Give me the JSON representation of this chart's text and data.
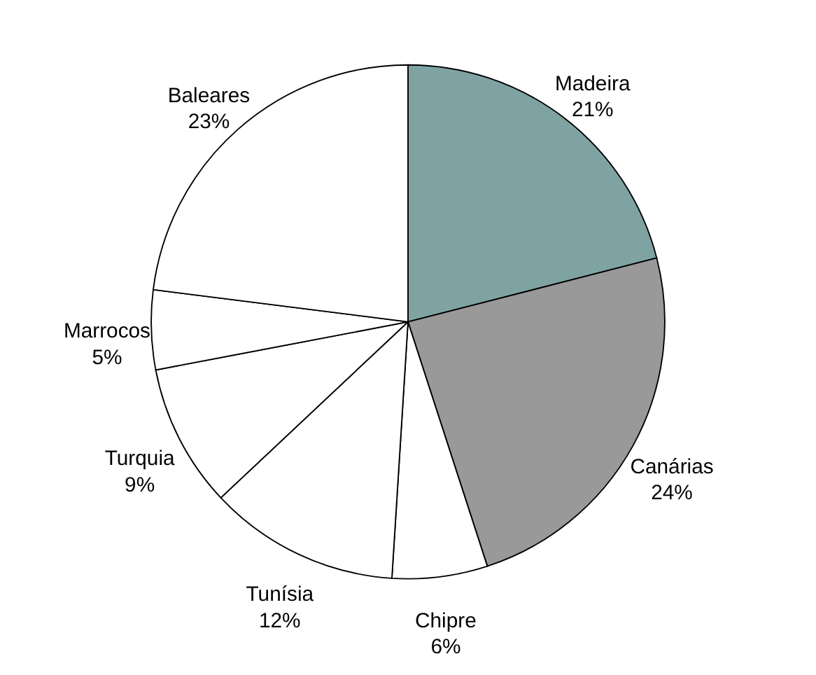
{
  "chart_data": {
    "type": "pie",
    "categories": [
      "Madeira",
      "Canárias",
      "Chipre",
      "Tunísia",
      "Turquia",
      "Marrocos",
      "Baleares"
    ],
    "values": [
      21,
      24,
      6,
      12,
      9,
      5,
      23
    ],
    "value_labels": [
      "21%",
      "24%",
      "6%",
      "12%",
      "9%",
      "5%",
      "23%"
    ],
    "colors": [
      "#7fa3a3",
      "#999999",
      "#ffffff",
      "#ffffff",
      "#ffffff",
      "#ffffff",
      "#ffffff"
    ]
  }
}
